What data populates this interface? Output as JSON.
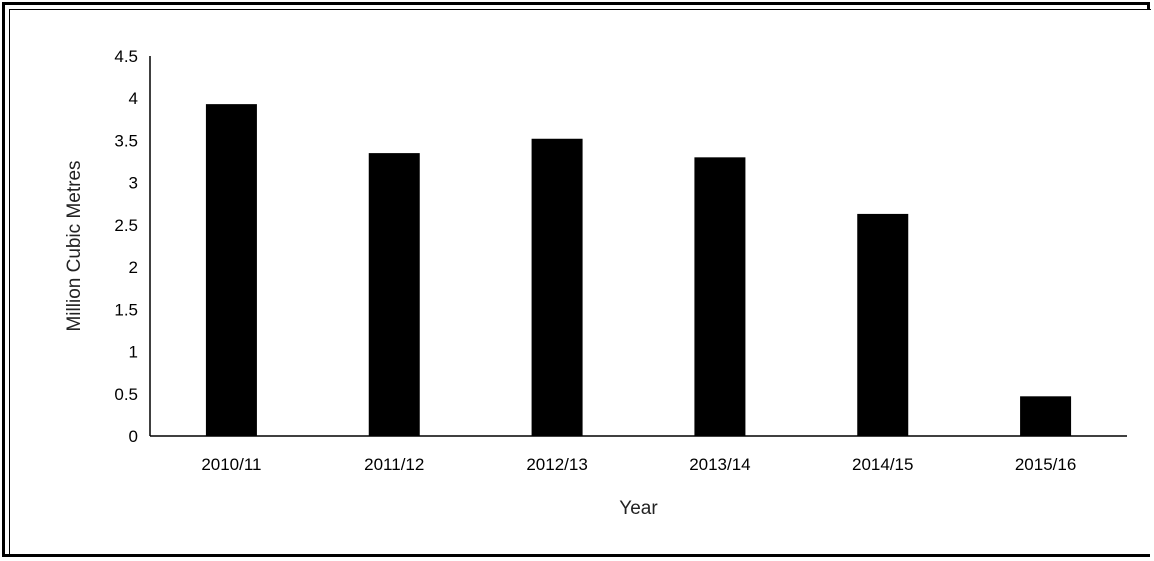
{
  "chart_data": {
    "type": "bar",
    "title": "",
    "xlabel": "Year",
    "ylabel": "Million Cubic Metres",
    "categories": [
      "2010/11",
      "2011/12",
      "2012/13",
      "2013/14",
      "2014/15",
      "2015/16"
    ],
    "values": [
      3.93,
      3.35,
      3.52,
      3.3,
      2.63,
      0.47
    ],
    "ylim": [
      0,
      4.5
    ],
    "yticks": [
      0,
      0.5,
      1,
      1.5,
      2,
      2.5,
      3,
      3.5,
      4,
      4.5
    ],
    "ytick_labels": [
      "0",
      "0.5",
      "1",
      "1.5",
      "2",
      "2.5",
      "3",
      "3.5",
      "4",
      "4.5"
    ],
    "grid": false,
    "legend": "none",
    "bar_color": "#000000"
  }
}
